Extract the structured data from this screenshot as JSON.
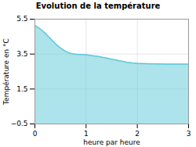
{
  "chart_data": {
    "type": "area",
    "title": "Evolution de la température",
    "xlabel": "heure par heure",
    "ylabel": "Température en °C",
    "x": [
      0,
      0.05,
      0.1,
      0.15,
      0.2,
      0.25,
      0.3,
      0.35,
      0.4,
      0.45,
      0.5,
      0.55,
      0.6,
      0.65,
      0.7,
      0.75,
      0.8,
      0.85,
      0.9,
      0.95,
      1.0,
      1.05,
      1.1,
      1.15,
      1.2,
      1.25,
      1.3,
      1.35,
      1.4,
      1.45,
      1.5,
      1.55,
      1.6,
      1.65,
      1.7,
      1.75,
      1.8,
      1.85,
      1.9,
      1.95,
      2.0,
      2.1,
      2.2,
      2.4,
      2.6,
      2.8,
      3.0
    ],
    "values": [
      5.15,
      5.05,
      4.95,
      4.83,
      4.7,
      4.55,
      4.4,
      4.25,
      4.1,
      3.97,
      3.85,
      3.75,
      3.66,
      3.59,
      3.54,
      3.51,
      3.49,
      3.48,
      3.47,
      3.47,
      3.46,
      3.44,
      3.42,
      3.4,
      3.38,
      3.36,
      3.33,
      3.3,
      3.27,
      3.24,
      3.21,
      3.18,
      3.15,
      3.12,
      3.09,
      3.06,
      3.03,
      3.01,
      2.99,
      2.98,
      2.97,
      2.96,
      2.95,
      2.94,
      2.93,
      2.93,
      2.93
    ],
    "color": "#5bc8d8",
    "xlim": [
      0,
      3
    ],
    "ylim": [
      -0.5,
      5.5
    ],
    "xticks": [
      0,
      1,
      2,
      3
    ],
    "yticks": [
      -0.5,
      1.5,
      3.5,
      5.5
    ],
    "grid": true
  }
}
